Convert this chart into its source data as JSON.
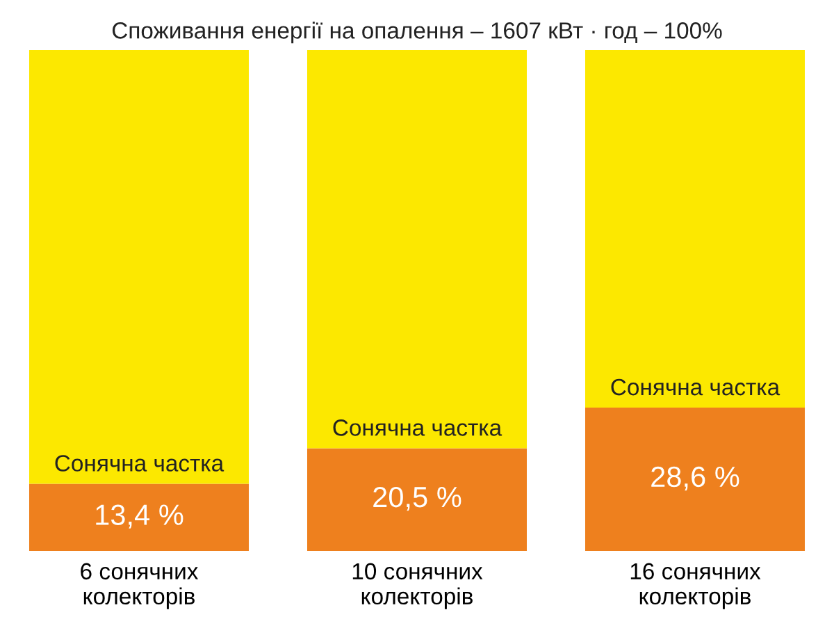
{
  "chart_data": {
    "type": "bar",
    "stacked": true,
    "title": "Споживання енергії на опалення – 1607 кВт · год – 100%",
    "categories": [
      "6 сонячних\nколекторів",
      "10 сонячних\nколекторів",
      "16 сонячних\nколекторів"
    ],
    "series": [
      {
        "color": "#ee801e",
        "values": [
          13.4,
          20.5,
          28.6
        ],
        "value_labels": [
          "13,4 %",
          "20,5 %",
          "28,6 %"
        ]
      },
      {
        "color": "#fce800",
        "values": [
          86.6,
          79.5,
          71.4
        ]
      }
    ],
    "ylim": [
      0,
      100
    ],
    "tick_labels": "x",
    "grid": false,
    "legend": false,
    "annotations": [
      {
        "text": "Сонячна частка",
        "x": "6 сонячних\nколекторів",
        "y": 13.4
      },
      {
        "text": "Сонячна частка",
        "x": "10 сонячних\nколекторів",
        "y": 20.5
      },
      {
        "text": "Сонячна частка",
        "x": "16 сонячних\nколекторів",
        "y": 28.6
      }
    ]
  }
}
